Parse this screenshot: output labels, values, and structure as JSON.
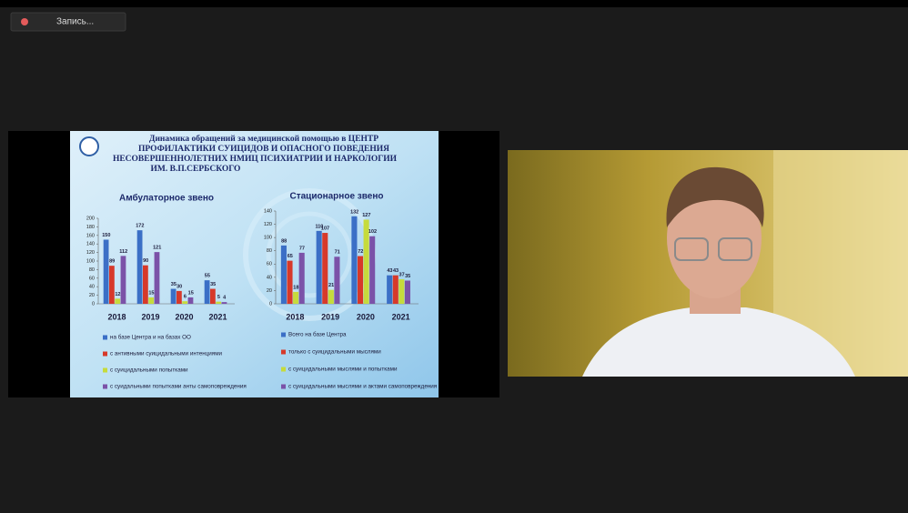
{
  "recording_label": "Запись...",
  "slide_title_lines": [
    "Динамика обращений за медицинской помощью в  ЦЕНТР",
    "ПРОФИЛАКТИКИ СУИЦИДОВ И ОПАСНОГО ПОВЕДЕНИЯ",
    "НЕСОВЕРШЕННОЛЕТНИХ  НМИЦ ПСИХИАТРИИ И НАРКОЛОГИИ",
    "ИМ. В.П.СЕРБСКОГО"
  ],
  "chart_data": [
    {
      "type": "bar",
      "title": "Амбулаторное звено",
      "categories": [
        "2018",
        "2019",
        "2020",
        "2021"
      ],
      "series": [
        {
          "name": "на базе Центра и на базах ОО",
          "color": "#3b6fc6",
          "values": [
            150,
            172,
            35,
            55
          ]
        },
        {
          "name": "с  антивными суицидальными интенциями",
          "color": "#d7392a",
          "values": [
            89,
            90,
            30,
            35
          ]
        },
        {
          "name": "с суицидальными попытками",
          "color": "#c6db3c",
          "values": [
            12,
            15,
            6,
            5
          ]
        },
        {
          "name": "с суидальными попытками анты самоповреждения",
          "color": "#7b52a8",
          "values": [
            112,
            121,
            15,
            4
          ]
        }
      ],
      "ylim": [
        0,
        200
      ],
      "yticks": [
        0,
        20,
        40,
        60,
        80,
        100,
        120,
        140,
        160,
        180,
        200
      ]
    },
    {
      "type": "bar",
      "title": "Стационарное звено",
      "categories": [
        "2018",
        "2019",
        "2020",
        "2021"
      ],
      "series": [
        {
          "name": "Всего на базе Центра",
          "color": "#3b6fc6",
          "values": [
            88,
            110,
            132,
            43
          ]
        },
        {
          "name": "только с суицидальными мыслями",
          "color": "#d7392a",
          "values": [
            65,
            107,
            72,
            43
          ]
        },
        {
          "name": "с суицидальными мыслями и попытками",
          "color": "#c6db3c",
          "values": [
            18,
            21,
            127,
            37
          ]
        },
        {
          "name": "с суицидальными мыслями и актами самоповреждения",
          "color": "#7b52a8",
          "values": [
            77,
            71,
            102,
            35
          ]
        }
      ],
      "ylim": [
        0,
        140
      ],
      "yticks": [
        0,
        20,
        40,
        60,
        80,
        100,
        120,
        140
      ]
    }
  ]
}
